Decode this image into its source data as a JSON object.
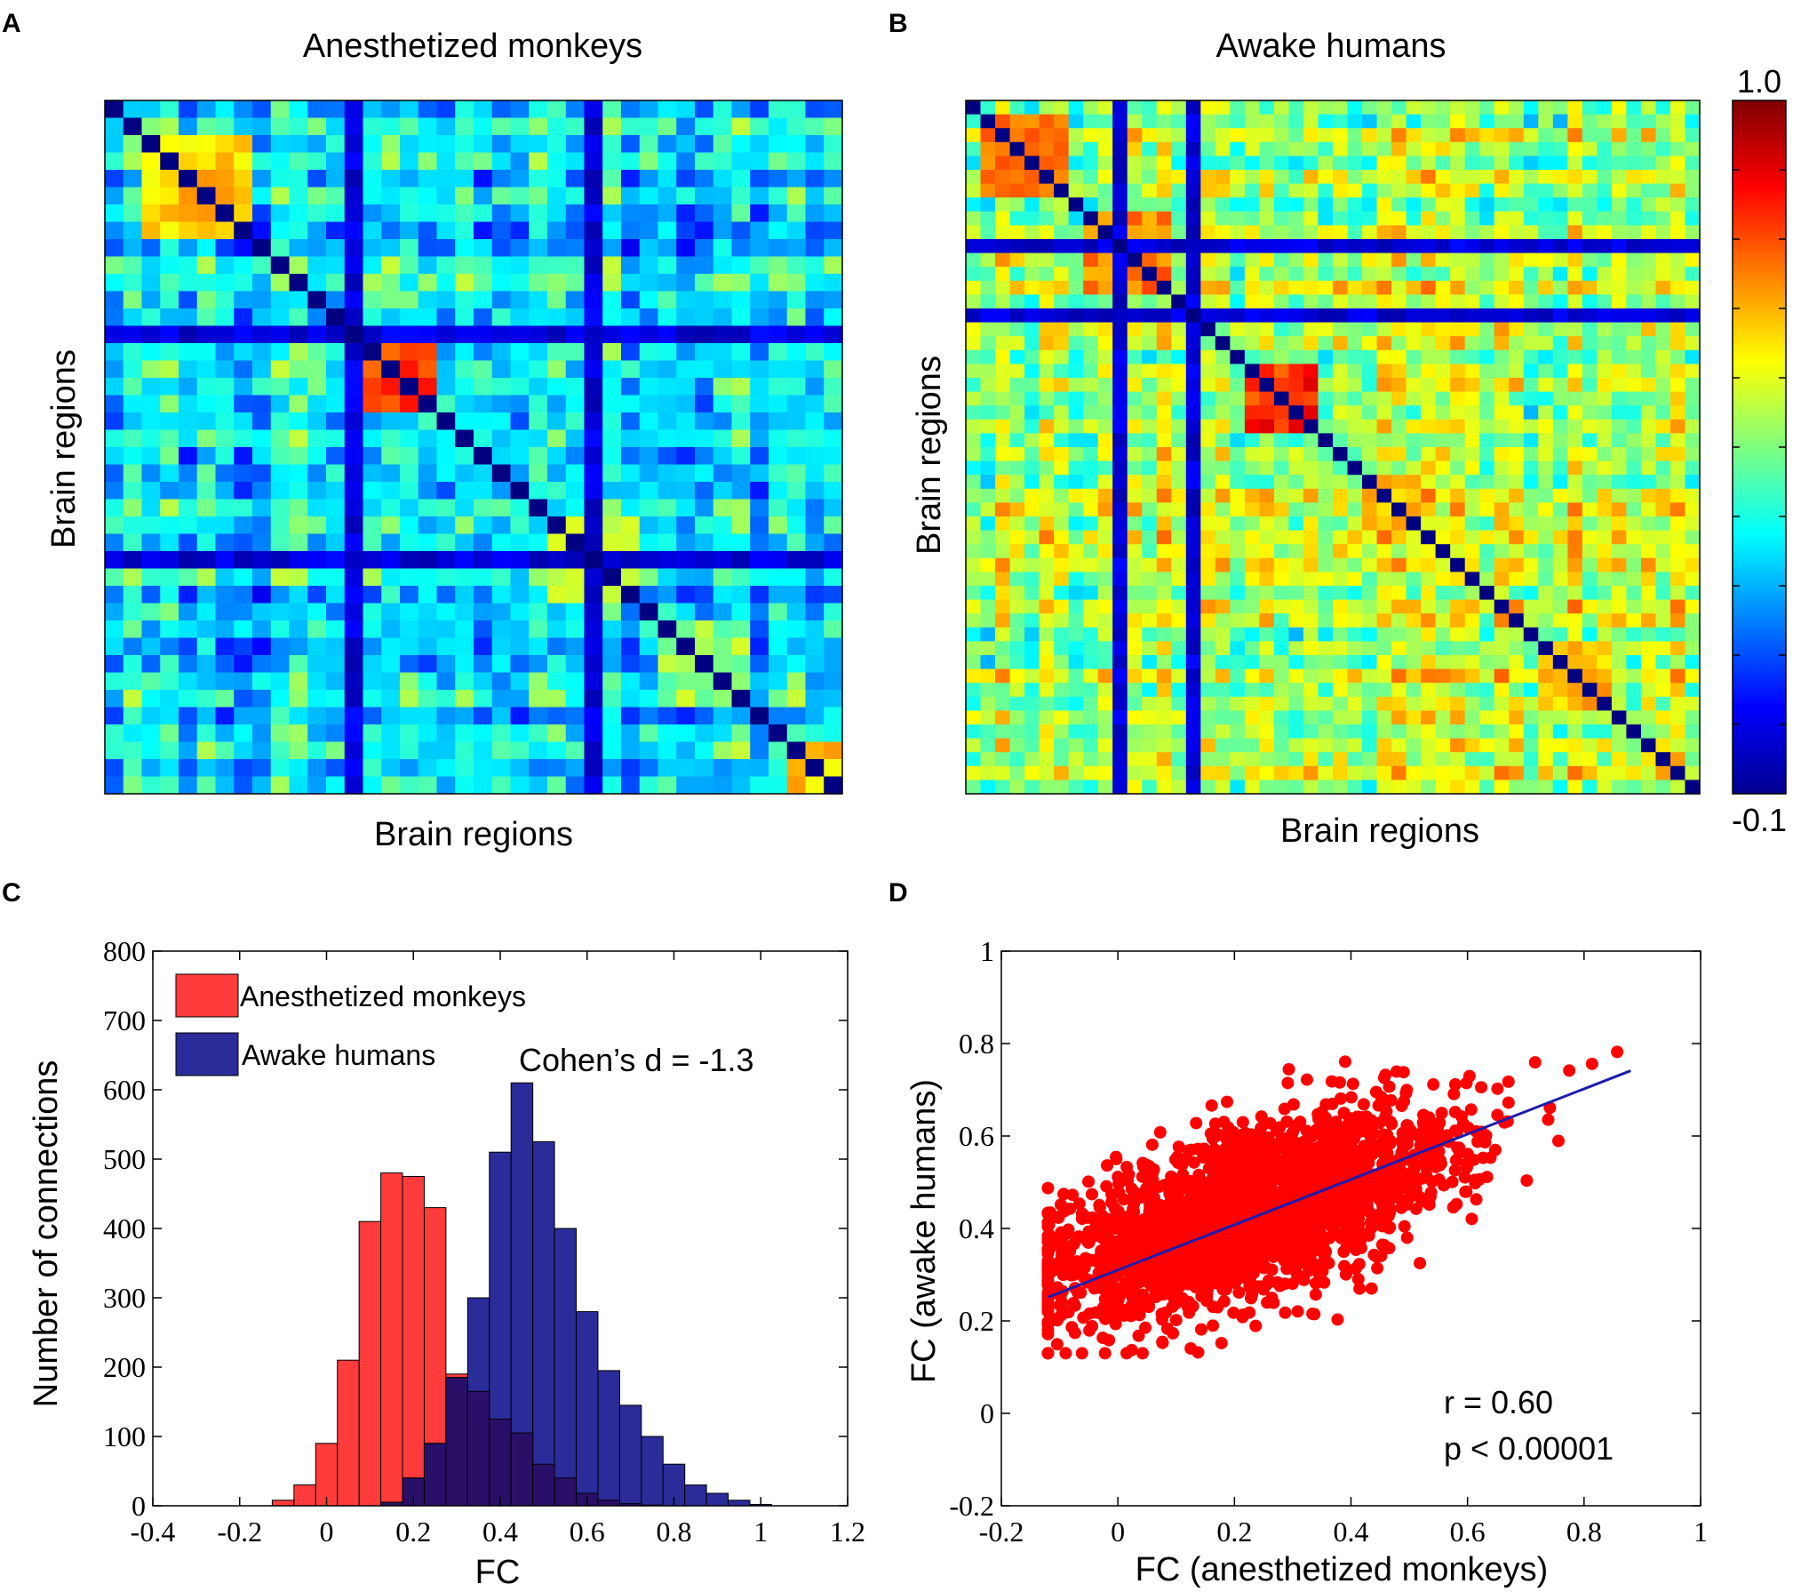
{
  "chart_data": [
    {
      "panel": "A",
      "type": "heatmap",
      "title": "Anesthetized monkeys",
      "xlabel": "Brain regions",
      "ylabel": "Brain regions",
      "n_regions": 40,
      "value_range": [
        -0.1,
        1.0
      ],
      "block_groups": [
        [
          3,
          8,
          0.72
        ],
        [
          14,
          18,
          0.85
        ],
        [
          25,
          29,
          0.6
        ],
        [
          31,
          35,
          0.55
        ],
        [
          38,
          40,
          0.7
        ]
      ],
      "hub_rows": [
        14,
        27
      ],
      "colorbar_shared": true
    },
    {
      "panel": "B",
      "type": "heatmap",
      "title": "Awake humans",
      "xlabel": "Brain regions",
      "ylabel": "Brain regions",
      "n_regions": 50,
      "value_range": [
        -0.1,
        1.0
      ],
      "block_groups": [
        [
          2,
          7,
          0.8
        ],
        [
          9,
          14,
          0.8
        ],
        [
          20,
          24,
          0.9
        ],
        [
          28,
          32,
          0.7
        ],
        [
          40,
          44,
          0.75
        ]
      ],
      "hub_rows": [
        11,
        16
      ]
    },
    {
      "panel": "C",
      "type": "histogram",
      "xlabel": "FC",
      "ylabel": "Number of connections",
      "xlim": [
        -0.4,
        1.2
      ],
      "ylim": [
        0,
        800
      ],
      "x_ticks": [
        "-0.4",
        "-0.2",
        "0",
        "0.2",
        "0.4",
        "0.6",
        "0.8",
        "1",
        "1.2"
      ],
      "y_ticks": [
        "0",
        "100",
        "200",
        "300",
        "400",
        "500",
        "600",
        "700",
        "800"
      ],
      "bin_width": 0.05,
      "series": [
        {
          "name": "Anesthetized monkeys",
          "color": "#ff3b3b",
          "bin_starts": [
            -0.125,
            -0.075,
            -0.025,
            0.025,
            0.075,
            0.125,
            0.175,
            0.225,
            0.275,
            0.325,
            0.375,
            0.425,
            0.475,
            0.525,
            0.575,
            0.625,
            0.675,
            0.725
          ],
          "values": [
            8,
            30,
            90,
            210,
            410,
            480,
            475,
            430,
            190,
            165,
            125,
            105,
            60,
            40,
            18,
            8,
            3,
            1
          ]
        },
        {
          "name": "Awake humans",
          "color": "#2b2b9a",
          "bin_starts": [
            0.125,
            0.175,
            0.225,
            0.275,
            0.325,
            0.375,
            0.425,
            0.475,
            0.525,
            0.575,
            0.625,
            0.675,
            0.725,
            0.775,
            0.825,
            0.875,
            0.925,
            0.975
          ],
          "values": [
            5,
            40,
            90,
            185,
            300,
            510,
            610,
            525,
            400,
            280,
            195,
            145,
            100,
            60,
            30,
            18,
            8,
            2
          ]
        }
      ],
      "annotation": "Cohen’s d = -1.3"
    },
    {
      "panel": "D",
      "type": "scatter",
      "xlabel": "FC (anesthetized monkeys)",
      "ylabel": "FC (awake humans)",
      "xlim": [
        -0.2,
        1
      ],
      "ylim": [
        -0.2,
        1
      ],
      "x_ticks": [
        "-0.2",
        "0",
        "0.2",
        "0.4",
        "0.6",
        "0.8",
        "1"
      ],
      "y_ticks": [
        "-0.2",
        "0",
        "0.2",
        "0.4",
        "0.6",
        "0.8",
        "1"
      ],
      "point_color": "#ff0000",
      "n_points": 2400,
      "x_mean": 0.22,
      "x_sd": 0.17,
      "y_mean": 0.43,
      "y_sd": 0.11,
      "fit_line": {
        "slope": 0.49,
        "intercept": 0.31,
        "x_range": [
          -0.12,
          0.88
        ],
        "color": "#1c1cb0"
      },
      "annotations": [
        "r = 0.60",
        "p < 0.00001"
      ]
    }
  ],
  "labels": {
    "panel_a": "A",
    "panel_b": "B",
    "panel_c": "C",
    "panel_d": "D",
    "colorbar_max": "1.0",
    "colorbar_min": "-0.1"
  }
}
